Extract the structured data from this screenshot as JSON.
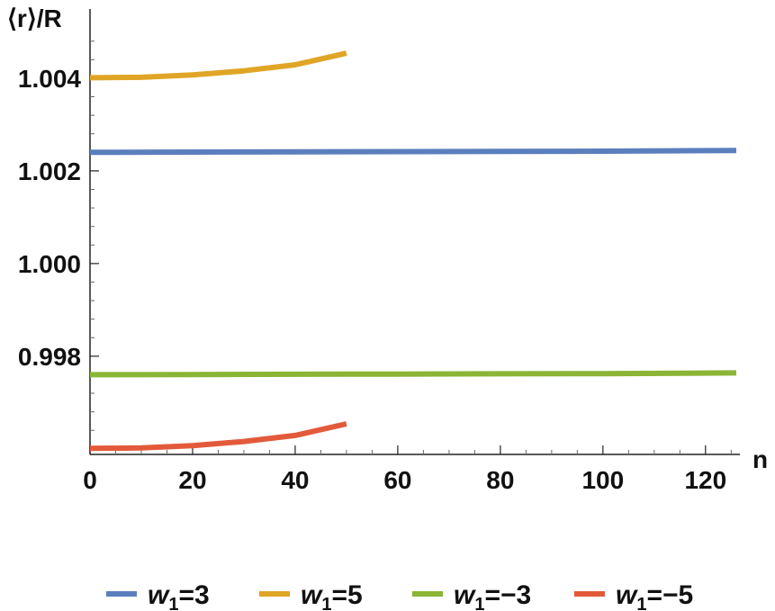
{
  "chart_data": {
    "type": "line",
    "ylabel": "⟨r⟩/R",
    "xlabel": "n",
    "xlim": [
      0,
      126
    ],
    "ylim": [
      0.99588,
      1.00495
    ],
    "xticks": [
      0,
      20,
      40,
      60,
      80,
      100,
      120
    ],
    "xtick_labels": [
      "0",
      "20",
      "40",
      "60",
      "80",
      "100",
      "120"
    ],
    "yticks": [
      0.998,
      1.0,
      1.002,
      1.004
    ],
    "ytick_labels": [
      "0.998",
      "1.000",
      "1.002",
      "1.004"
    ],
    "legend_position": "bottom",
    "grid": false,
    "series": [
      {
        "name": "w1=3",
        "legend_var": "w",
        "legend_sub": "1",
        "legend_value": "=3",
        "color": "#5b7fbd",
        "x": [
          0,
          20,
          40,
          60,
          80,
          100,
          126
        ],
        "y": [
          1.0024,
          1.002405,
          1.00241,
          1.002415,
          1.00242,
          1.002425,
          1.00244
        ]
      },
      {
        "name": "w1=5",
        "legend_var": "w",
        "legend_sub": "1",
        "legend_value": "=5",
        "color": "#e0a526",
        "x": [
          0,
          10,
          20,
          30,
          40,
          50
        ],
        "y": [
          1.00401,
          1.00402,
          1.00407,
          1.00416,
          1.00429,
          1.00454
        ]
      },
      {
        "name": "w1=-3",
        "legend_var": "w",
        "legend_sub": "1",
        "legend_value": "=−3",
        "color": "#8ab535",
        "x": [
          0,
          20,
          40,
          60,
          80,
          100,
          126
        ],
        "y": [
          0.9976,
          0.997605,
          0.99761,
          0.997615,
          0.99762,
          0.997625,
          0.99764
        ]
      },
      {
        "name": "w1=-5",
        "legend_var": "w",
        "legend_sub": "1",
        "legend_value": "=−5",
        "color": "#e35a3b",
        "x": [
          0,
          10,
          20,
          30,
          40,
          50
        ],
        "y": [
          0.99601,
          0.99602,
          0.99607,
          0.99616,
          0.99629,
          0.99654
        ]
      }
    ]
  }
}
